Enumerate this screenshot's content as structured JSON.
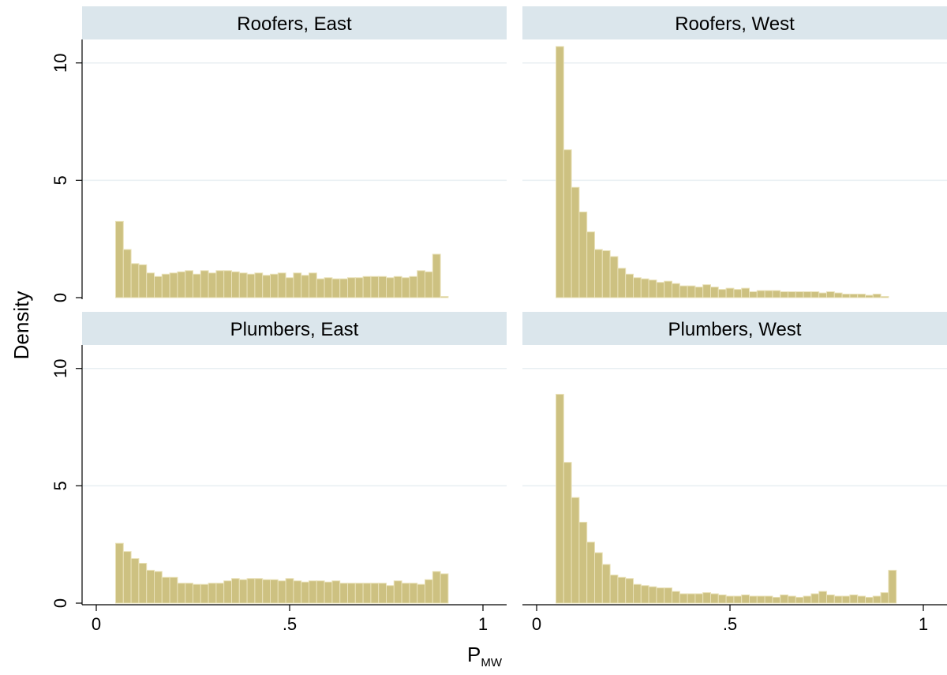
{
  "chart_data": {
    "type": "bar",
    "histogram": true,
    "ylabel": "Density",
    "xlabel": {
      "main": "P",
      "sub": "MW"
    },
    "xlim": [
      0,
      1
    ],
    "ylim": [
      0,
      11
    ],
    "xticks": [
      0,
      0.5,
      1
    ],
    "xtick_labels": [
      "0",
      ".5",
      "1"
    ],
    "yticks": [
      0,
      5,
      10
    ],
    "ytick_labels": [
      "0",
      "5",
      "10"
    ],
    "grid": "horizontal",
    "bin_start": 0.05,
    "bin_width": 0.02,
    "colors": {
      "bar_fill": "#cdc181",
      "bar_stroke": "#e9e1b8",
      "strip": "#dbe6ec",
      "grid": "#e8eff2"
    },
    "panels": [
      {
        "title": "Roofers, East",
        "values": [
          3.25,
          2.05,
          1.45,
          1.4,
          1.05,
          0.9,
          1.0,
          1.05,
          1.1,
          1.15,
          1.0,
          1.15,
          1.05,
          1.15,
          1.15,
          1.1,
          1.05,
          1.0,
          1.05,
          0.95,
          1.0,
          1.05,
          0.85,
          1.05,
          0.95,
          1.05,
          0.8,
          0.85,
          0.8,
          0.8,
          0.85,
          0.85,
          0.9,
          0.9,
          0.9,
          0.85,
          0.9,
          0.85,
          0.9,
          1.15,
          1.1,
          1.85,
          0.05
        ]
      },
      {
        "title": "Roofers, West",
        "values": [
          10.7,
          6.3,
          4.7,
          3.65,
          2.8,
          2.05,
          2.0,
          1.75,
          1.25,
          1.0,
          0.85,
          0.8,
          0.75,
          0.65,
          0.7,
          0.6,
          0.5,
          0.5,
          0.45,
          0.55,
          0.45,
          0.35,
          0.4,
          0.35,
          0.4,
          0.25,
          0.3,
          0.3,
          0.3,
          0.25,
          0.25,
          0.25,
          0.25,
          0.25,
          0.2,
          0.25,
          0.2,
          0.15,
          0.15,
          0.15,
          0.1,
          0.15,
          0.05
        ]
      },
      {
        "title": "Plumbers, East",
        "values": [
          2.55,
          2.2,
          1.9,
          1.7,
          1.4,
          1.35,
          1.1,
          1.1,
          0.85,
          0.85,
          0.8,
          0.8,
          0.85,
          0.85,
          0.95,
          1.05,
          1.0,
          1.05,
          1.05,
          1.0,
          1.0,
          0.95,
          1.05,
          0.95,
          0.9,
          0.95,
          0.95,
          0.9,
          0.95,
          0.85,
          0.85,
          0.85,
          0.85,
          0.85,
          0.85,
          0.75,
          0.95,
          0.85,
          0.85,
          0.8,
          1.0,
          1.35,
          1.25
        ]
      },
      {
        "title": "Plumbers, West",
        "values": [
          8.9,
          6.0,
          4.5,
          3.45,
          2.6,
          2.15,
          1.65,
          1.2,
          1.1,
          1.05,
          0.8,
          0.75,
          0.7,
          0.65,
          0.65,
          0.5,
          0.4,
          0.4,
          0.4,
          0.45,
          0.4,
          0.35,
          0.3,
          0.3,
          0.35,
          0.3,
          0.3,
          0.3,
          0.25,
          0.35,
          0.3,
          0.25,
          0.3,
          0.4,
          0.5,
          0.35,
          0.3,
          0.3,
          0.35,
          0.3,
          0.25,
          0.3,
          0.45,
          1.4
        ]
      }
    ]
  }
}
